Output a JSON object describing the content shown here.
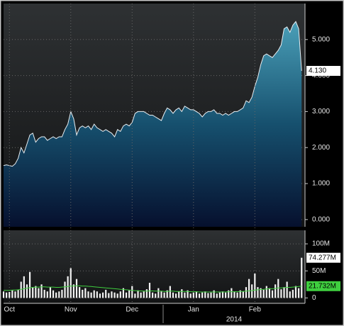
{
  "chart_data": [
    {
      "type": "area",
      "color": "#2f86a3",
      "line_color": "#e8eef2",
      "grid": true,
      "values": [
        1.5,
        1.52,
        1.5,
        1.48,
        1.55,
        1.7,
        2.0,
        1.85,
        2.1,
        2.35,
        2.4,
        2.15,
        2.25,
        2.3,
        2.3,
        2.2,
        2.25,
        2.3,
        2.25,
        2.3,
        2.3,
        2.5,
        2.65,
        3.0,
        2.8,
        2.35,
        2.55,
        2.6,
        2.55,
        2.6,
        2.5,
        2.65,
        2.55,
        2.5,
        2.45,
        2.5,
        2.45,
        2.4,
        2.3,
        2.5,
        2.45,
        2.6,
        2.65,
        2.6,
        2.7,
        2.95,
        3.0,
        3.0,
        3.0,
        2.95,
        2.9,
        2.9,
        2.85,
        2.8,
        2.75,
        2.95,
        3.1,
        3.05,
        2.95,
        3.05,
        3.1,
        3.0,
        3.15,
        3.1,
        3.05,
        3.05,
        3.0,
        2.95,
        2.85,
        2.95,
        3.0,
        3.0,
        3.05,
        2.95,
        2.95,
        2.9,
        2.95,
        2.9,
        2.95,
        3.0,
        3.0,
        3.05,
        3.1,
        3.3,
        3.25,
        3.4,
        3.7,
        3.95,
        4.3,
        4.55,
        4.6,
        4.55,
        4.5,
        4.6,
        4.7,
        4.85,
        5.3,
        5.35,
        5.2,
        5.4,
        5.5,
        5.3,
        4.13
      ],
      "last_value_label": "4.130",
      "ylim": [
        -0.2,
        6.0
      ],
      "yticks": [
        {
          "value": 0,
          "label": "0.000"
        },
        {
          "value": 1,
          "label": "1.000"
        },
        {
          "value": 2,
          "label": "2.000"
        },
        {
          "value": 3,
          "label": "3.000"
        },
        {
          "value": 4,
          "label": "4.000"
        },
        {
          "value": 5,
          "label": "5.000"
        }
      ]
    },
    {
      "type": "bar",
      "grid": true,
      "categories": [
        null,
        null,
        "Oct",
        null,
        null,
        null,
        null,
        null,
        null,
        null,
        null,
        null,
        null,
        null,
        null,
        null,
        null,
        null,
        null,
        null,
        null,
        null,
        null,
        "Nov",
        null,
        null,
        null,
        null,
        null,
        null,
        null,
        null,
        null,
        null,
        null,
        null,
        null,
        null,
        null,
        null,
        null,
        null,
        null,
        null,
        "Dec",
        null,
        null,
        null,
        null,
        null,
        null,
        null,
        null,
        null,
        null,
        null,
        null,
        null,
        null,
        null,
        null,
        null,
        null,
        null,
        null,
        "Jan",
        null,
        null,
        null,
        null,
        null,
        null,
        null,
        null,
        null,
        null,
        null,
        null,
        null,
        null,
        null,
        null,
        null,
        null,
        null,
        null,
        "Feb",
        null,
        null,
        null,
        null,
        null,
        null,
        null,
        null,
        null,
        null,
        null,
        null,
        null,
        null,
        null,
        null
      ],
      "year_label": "2014",
      "series": [
        {
          "type": "bar",
          "color": "#f2f2f2",
          "label_bg": "#ffffff",
          "last_value_label": "74.277M",
          "values": [
            12,
            10,
            11,
            14,
            12,
            15,
            30,
            40,
            25,
            48,
            20,
            22,
            18,
            25,
            15,
            12,
            20,
            14,
            10,
            12,
            15,
            30,
            40,
            55,
            25,
            35,
            20,
            15,
            18,
            12,
            10,
            14,
            12,
            8,
            10,
            15,
            9,
            12,
            10,
            8,
            12,
            18,
            10,
            14,
            22,
            8,
            14,
            10,
            12,
            16,
            28,
            10,
            8,
            18,
            12,
            10,
            14,
            22,
            10,
            8,
            12,
            16,
            10,
            14,
            8,
            10,
            12,
            8,
            10,
            12,
            9,
            10,
            14,
            8,
            10,
            12,
            10,
            14,
            18,
            12,
            10,
            14,
            12,
            20,
            35,
            25,
            45,
            20,
            18,
            15,
            22,
            18,
            14,
            25,
            35,
            16,
            20,
            30,
            12,
            15,
            22,
            18,
            74.277
          ]
        },
        {
          "type": "line",
          "color": "#3fcf3f",
          "label_bg": "#3fcf3f",
          "last_value_label": "21.732M",
          "values": [
            14,
            14,
            14,
            14.5,
            14.5,
            15,
            16,
            17,
            18,
            19,
            19.5,
            20,
            20,
            20.5,
            20.5,
            20,
            20,
            20,
            19.5,
            19.5,
            20,
            20.5,
            21,
            22,
            22,
            22.5,
            22.5,
            22,
            22,
            21.5,
            21,
            20.5,
            20,
            19.5,
            19,
            18.5,
            18,
            17.5,
            17,
            16.5,
            16,
            15.5,
            15,
            14.5,
            14,
            13.5,
            13,
            13,
            12.5,
            12.5,
            13,
            13,
            12.5,
            12.5,
            12.5,
            12,
            12,
            12.5,
            12.5,
            12,
            12,
            12,
            12,
            12,
            11.5,
            11.5,
            11.5,
            11,
            11,
            11,
            11,
            11,
            11,
            11,
            11,
            11,
            11,
            11.5,
            11.5,
            11.5,
            11.5,
            12,
            12,
            12.5,
            13,
            13.5,
            14.5,
            15,
            15.5,
            16,
            16.5,
            17,
            17,
            17.5,
            18.5,
            18.5,
            19,
            19.5,
            19.5,
            20,
            20.5,
            21,
            21.732
          ]
        }
      ],
      "ylim": [
        -10,
        125
      ],
      "yticks": [
        0,
        {
          "value": 50,
          "label": "50M"
        },
        {
          "value": 100,
          "label": "100M"
        }
      ]
    }
  ]
}
